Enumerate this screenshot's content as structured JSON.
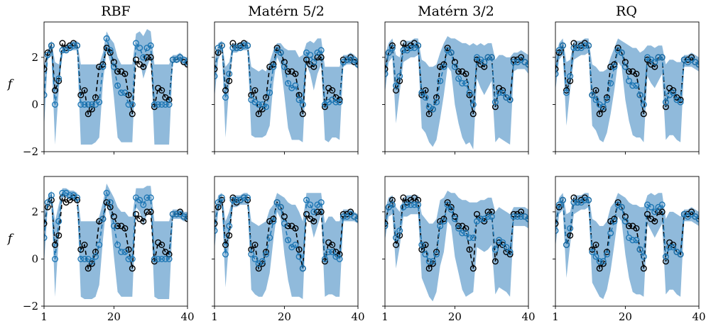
{
  "chart_data": {
    "type": "line",
    "layout": "2 rows x 4 columns, shared axes",
    "column_titles": [
      "RBF",
      "Matérn 5/2",
      "Matérn 3/2",
      "RQ"
    ],
    "ylabel": "f",
    "xlim": [
      1,
      40
    ],
    "ylim": [
      -2,
      3.5
    ],
    "x_ticks": [
      1,
      20,
      40
    ],
    "x_tick_labels": [
      "1",
      "20",
      "40"
    ],
    "y_ticks": [
      -2,
      0,
      2
    ],
    "y_tick_labels": [
      "−2",
      "0",
      "2"
    ],
    "colors": {
      "truth": "#000000",
      "prediction": "#1f77b4",
      "band": "#8ab6d9"
    },
    "x": [
      1,
      2,
      3,
      4,
      5,
      6,
      7,
      8,
      9,
      10,
      11,
      12,
      13,
      14,
      15,
      16,
      17,
      18,
      19,
      20,
      21,
      22,
      23,
      24,
      25,
      26,
      27,
      28,
      29,
      30,
      31,
      32,
      33,
      34,
      35,
      36,
      37,
      38,
      39,
      40
    ],
    "truth": [
      1.5,
      2.2,
      2.5,
      0.6,
      1.0,
      2.6,
      2.4,
      2.5,
      2.6,
      2.5,
      0.4,
      0.6,
      -0.4,
      -0.2,
      0.3,
      1.6,
      1.7,
      2.4,
      2.2,
      1.8,
      1.4,
      1.4,
      1.3,
      0.4,
      -0.4,
      1.9,
      1.7,
      1.6,
      2.0,
      2.0,
      -0.1,
      0.7,
      0.6,
      0.3,
      0.2,
      1.9,
      1.9,
      2.0,
      1.8,
      1.7
    ],
    "panels": [
      {
        "row": 1,
        "col": 1,
        "kernel": "RBF",
        "mean": [
          0.4,
          2.1,
          2.5,
          0.0,
          1.1,
          2.3,
          2.3,
          2.4,
          2.5,
          2.5,
          0.0,
          0.0,
          0.0,
          0.0,
          0.0,
          0.1,
          1.6,
          2.8,
          2.3,
          1.6,
          0.8,
          0.5,
          0.5,
          0.0,
          0.0,
          2.6,
          2.4,
          2.0,
          2.4,
          2.5,
          0.0,
          0.0,
          0.0,
          0.0,
          0.0,
          1.9,
          1.9,
          2.0,
          1.9,
          1.8
        ],
        "lower": [
          -1.0,
          1.9,
          2.2,
          -1.7,
          0.6,
          2.2,
          2.2,
          2.3,
          2.3,
          2.3,
          -1.7,
          -1.7,
          -1.7,
          -1.7,
          -1.6,
          -1.4,
          0.9,
          2.3,
          1.8,
          0.3,
          -1.4,
          -1.6,
          -1.6,
          -1.6,
          -1.6,
          2.1,
          1.9,
          1.1,
          1.6,
          2.0,
          -1.7,
          -1.7,
          -1.7,
          -1.7,
          -1.7,
          1.8,
          1.8,
          1.8,
          1.7,
          1.6
        ],
        "upper": [
          1.7,
          2.3,
          2.7,
          1.8,
          1.7,
          2.5,
          2.5,
          2.6,
          2.7,
          2.7,
          1.7,
          1.7,
          1.7,
          1.7,
          1.7,
          1.7,
          2.2,
          3.1,
          2.8,
          2.6,
          2.0,
          1.7,
          1.7,
          1.7,
          1.7,
          3.0,
          3.1,
          2.9,
          3.2,
          3.1,
          1.7,
          1.7,
          1.7,
          1.7,
          1.7,
          2.1,
          2.1,
          2.2,
          2.0,
          2.0
        ]
      },
      {
        "row": 1,
        "col": 2,
        "kernel": "Matérn 5/2",
        "mean": [
          1.2,
          2.4,
          2.5,
          0.3,
          1.3,
          2.4,
          2.4,
          2.4,
          2.5,
          2.5,
          0.2,
          0.1,
          0.0,
          0.0,
          -0.1,
          0.5,
          1.6,
          2.3,
          2.2,
          1.6,
          0.9,
          0.7,
          0.8,
          0.2,
          0.0,
          2.2,
          2.1,
          1.8,
          2.2,
          2.3,
          0.0,
          0.1,
          0.2,
          0.1,
          0.1,
          1.8,
          1.9,
          1.9,
          1.9,
          1.7
        ],
        "lower": [
          0.3,
          1.9,
          2.3,
          -1.4,
          0.8,
          2.2,
          2.2,
          2.3,
          2.3,
          2.3,
          -1.3,
          -1.4,
          -1.4,
          -1.4,
          -1.3,
          -0.9,
          0.9,
          2.0,
          1.7,
          0.4,
          -1.0,
          -1.5,
          -1.5,
          -1.5,
          -1.6,
          1.7,
          1.3,
          0.6,
          1.3,
          1.7,
          -1.5,
          -1.6,
          -1.4,
          -1.4,
          -1.5,
          1.6,
          1.7,
          1.7,
          1.7,
          1.5
        ],
        "upper": [
          1.8,
          2.6,
          2.7,
          1.6,
          1.8,
          2.6,
          2.6,
          2.6,
          2.7,
          2.7,
          1.6,
          1.5,
          1.4,
          1.5,
          1.4,
          1.8,
          2.3,
          2.6,
          2.6,
          2.4,
          2.3,
          2.3,
          2.3,
          2.0,
          2.1,
          2.6,
          2.7,
          2.6,
          2.8,
          2.8,
          1.6,
          1.6,
          1.6,
          1.6,
          1.6,
          2.1,
          2.1,
          2.2,
          2.1,
          1.9
        ]
      },
      {
        "row": 1,
        "col": 3,
        "kernel": "Matérn 3/2",
        "mean": [
          1.3,
          2.2,
          2.4,
          0.8,
          1.2,
          2.3,
          2.3,
          2.4,
          2.4,
          2.5,
          0.5,
          0.3,
          -0.1,
          -0.2,
          0.1,
          1.0,
          1.6,
          2.3,
          2.2,
          1.6,
          1.1,
          0.9,
          0.9,
          0.5,
          0.0,
          2.0,
          1.9,
          1.8,
          2.0,
          2.0,
          0.1,
          0.5,
          0.5,
          0.3,
          0.2,
          1.8,
          1.8,
          1.9,
          1.8,
          1.7
        ],
        "lower": [
          0.5,
          1.8,
          2.0,
          -0.8,
          0.5,
          1.8,
          1.9,
          2.0,
          2.0,
          2.1,
          -1.0,
          -1.2,
          -1.6,
          -1.8,
          -1.5,
          -0.6,
          0.4,
          1.6,
          1.4,
          0.0,
          -0.8,
          -1.4,
          -1.7,
          -1.6,
          -1.9,
          1.1,
          0.7,
          0.4,
          0.7,
          1.0,
          -1.6,
          -1.4,
          -1.5,
          -1.6,
          -1.7,
          1.4,
          1.5,
          1.5,
          1.5,
          1.3
        ],
        "upper": [
          2.1,
          2.6,
          2.8,
          2.1,
          2.0,
          2.7,
          2.7,
          2.7,
          2.8,
          2.8,
          1.9,
          1.8,
          1.6,
          1.6,
          1.7,
          2.2,
          2.6,
          2.9,
          2.8,
          2.8,
          2.7,
          2.6,
          2.6,
          2.5,
          2.6,
          2.5,
          2.6,
          2.5,
          2.6,
          2.6,
          1.9,
          2.1,
          2.1,
          2.0,
          2.0,
          2.2,
          2.2,
          2.3,
          2.2,
          2.1
        ]
      },
      {
        "row": 1,
        "col": 4,
        "kernel": "RQ",
        "mean": [
          1.3,
          2.3,
          2.5,
          0.5,
          1.2,
          2.4,
          2.4,
          2.4,
          2.5,
          2.5,
          0.4,
          0.2,
          0.0,
          -0.1,
          0.2,
          0.9,
          1.6,
          2.3,
          2.2,
          1.6,
          1.0,
          0.8,
          0.8,
          0.4,
          0.0,
          2.0,
          1.9,
          1.8,
          2.0,
          2.0,
          0.1,
          0.4,
          0.5,
          0.2,
          0.1,
          1.9,
          1.8,
          1.9,
          1.8,
          1.7
        ],
        "lower": [
          0.6,
          1.9,
          2.1,
          -0.9,
          0.6,
          1.9,
          2.0,
          2.1,
          2.1,
          2.2,
          -0.9,
          -1.1,
          -1.5,
          -1.6,
          -1.2,
          -0.4,
          0.6,
          1.8,
          1.6,
          0.2,
          -0.7,
          -1.3,
          -1.4,
          -1.4,
          -1.6,
          1.2,
          0.9,
          0.7,
          1.0,
          1.3,
          -1.5,
          -1.3,
          -1.3,
          -1.5,
          -1.6,
          1.6,
          1.6,
          1.6,
          1.5,
          1.4
        ],
        "upper": [
          2.0,
          2.6,
          2.8,
          1.8,
          1.9,
          2.7,
          2.7,
          2.7,
          2.8,
          2.8,
          1.7,
          1.6,
          1.4,
          1.4,
          1.5,
          2.0,
          2.4,
          2.8,
          2.7,
          2.6,
          2.5,
          2.4,
          2.4,
          2.2,
          2.3,
          2.5,
          2.5,
          2.4,
          2.5,
          2.5,
          1.7,
          1.9,
          1.9,
          1.8,
          1.8,
          2.1,
          2.1,
          2.2,
          2.1,
          2.0
        ]
      },
      {
        "row": 2,
        "col": 1,
        "kernel": "RBF",
        "mean": [
          0.9,
          2.4,
          2.7,
          0.0,
          1.6,
          2.8,
          2.8,
          2.7,
          2.7,
          2.6,
          0.0,
          0.0,
          0.0,
          -0.1,
          0.1,
          0.6,
          1.7,
          2.8,
          2.4,
          1.4,
          0.6,
          0.3,
          0.3,
          0.0,
          0.0,
          2.6,
          2.5,
          2.3,
          2.6,
          2.6,
          0.0,
          0.0,
          0.0,
          0.0,
          0.0,
          1.9,
          1.9,
          1.9,
          1.8,
          1.8
        ],
        "lower": [
          -0.2,
          2.2,
          2.5,
          -1.6,
          0.9,
          2.6,
          2.6,
          2.5,
          2.5,
          2.4,
          -1.6,
          -1.7,
          -1.7,
          -1.7,
          -1.6,
          -1.1,
          0.8,
          2.4,
          1.8,
          0.1,
          -1.4,
          -1.6,
          -1.6,
          -1.6,
          -1.6,
          2.2,
          2.0,
          1.4,
          1.9,
          2.2,
          -1.6,
          -1.7,
          -1.7,
          -1.7,
          -1.7,
          1.7,
          1.7,
          1.7,
          1.6,
          1.6
        ],
        "upper": [
          2.0,
          2.6,
          2.9,
          1.6,
          2.3,
          3.0,
          3.0,
          2.9,
          2.9,
          2.8,
          1.6,
          1.6,
          1.6,
          1.6,
          1.6,
          1.8,
          2.4,
          3.2,
          2.9,
          2.6,
          2.2,
          2.0,
          2.0,
          1.8,
          1.8,
          3.0,
          3.0,
          3.0,
          3.1,
          3.1,
          1.6,
          1.6,
          1.6,
          1.6,
          1.6,
          2.1,
          2.1,
          2.1,
          2.0,
          2.0
        ]
      },
      {
        "row": 2,
        "col": 2,
        "kernel": "Matérn 5/2",
        "mean": [
          1.2,
          2.4,
          2.6,
          0.2,
          1.4,
          2.5,
          2.5,
          2.5,
          2.6,
          2.6,
          0.2,
          0.0,
          -0.2,
          -0.1,
          0.2,
          0.9,
          1.6,
          2.4,
          2.2,
          1.5,
          0.8,
          0.5,
          0.6,
          0.1,
          -0.4,
          2.5,
          2.3,
          2.0,
          2.3,
          2.4,
          0.0,
          0.3,
          0.3,
          0.1,
          0.0,
          1.8,
          1.8,
          1.9,
          1.8,
          1.7
        ],
        "lower": [
          0.4,
          2.0,
          2.3,
          -1.2,
          0.8,
          2.2,
          2.2,
          2.3,
          2.3,
          2.3,
          -1.3,
          -1.5,
          -1.6,
          -1.6,
          -1.3,
          -0.6,
          0.8,
          2.0,
          1.7,
          0.2,
          -0.9,
          -1.6,
          -1.6,
          -1.6,
          -1.7,
          2.0,
          1.6,
          0.9,
          1.4,
          1.9,
          -1.6,
          -1.5,
          -1.5,
          -1.6,
          -1.6,
          1.6,
          1.6,
          1.6,
          1.6,
          1.5
        ],
        "upper": [
          1.9,
          2.7,
          2.8,
          1.6,
          2.0,
          2.7,
          2.7,
          2.7,
          2.8,
          2.8,
          1.6,
          1.5,
          1.4,
          1.5,
          1.6,
          2.1,
          2.3,
          2.8,
          2.7,
          2.6,
          2.4,
          2.3,
          2.3,
          2.0,
          1.6,
          2.8,
          2.8,
          2.8,
          2.8,
          2.8,
          1.5,
          1.8,
          1.8,
          1.6,
          1.6,
          2.1,
          2.1,
          2.1,
          2.0,
          1.9
        ]
      },
      {
        "row": 2,
        "col": 3,
        "kernel": "Matérn 3/2",
        "mean": [
          1.4,
          2.2,
          2.3,
          0.9,
          1.2,
          2.2,
          2.3,
          2.3,
          2.3,
          2.3,
          0.6,
          0.2,
          -0.1,
          -0.1,
          0.2,
          1.4,
          1.6,
          2.3,
          2.1,
          1.7,
          1.3,
          1.1,
          1.1,
          0.9,
          0.9,
          1.6,
          1.7,
          1.7,
          1.8,
          1.8,
          0.4,
          0.8,
          0.7,
          0.5,
          0.3,
          1.8,
          1.8,
          1.8,
          1.8,
          1.7
        ],
        "lower": [
          0.8,
          1.8,
          1.9,
          -0.4,
          0.5,
          1.8,
          1.8,
          1.9,
          1.9,
          1.9,
          -0.8,
          -1.2,
          -1.6,
          -1.8,
          -1.4,
          -0.3,
          0.3,
          1.6,
          1.4,
          0.1,
          -0.6,
          -1.3,
          -1.6,
          -1.5,
          -1.4,
          0.5,
          0.4,
          0.3,
          0.4,
          0.6,
          -1.5,
          -1.2,
          -1.3,
          -1.4,
          -1.6,
          1.4,
          1.4,
          1.4,
          1.4,
          1.3
        ],
        "upper": [
          2.1,
          2.6,
          2.7,
          2.2,
          2.0,
          2.6,
          2.7,
          2.7,
          2.7,
          2.7,
          1.9,
          1.7,
          1.5,
          1.5,
          1.7,
          2.5,
          2.6,
          2.9,
          2.8,
          2.8,
          2.6,
          2.5,
          2.5,
          2.4,
          2.4,
          2.4,
          2.5,
          2.5,
          2.6,
          2.6,
          2.0,
          2.2,
          2.1,
          2.0,
          1.9,
          2.2,
          2.2,
          2.2,
          2.2,
          2.1
        ]
      },
      {
        "row": 2,
        "col": 4,
        "kernel": "RQ",
        "mean": [
          1.2,
          2.3,
          2.5,
          0.6,
          1.3,
          2.4,
          2.4,
          2.4,
          2.5,
          2.5,
          0.3,
          0.1,
          -0.1,
          -0.1,
          0.2,
          1.1,
          1.6,
          2.3,
          2.2,
          1.6,
          0.9,
          0.8,
          0.8,
          0.4,
          0.1,
          2.3,
          2.2,
          2.0,
          2.2,
          2.3,
          0.1,
          0.5,
          0.5,
          0.3,
          0.2,
          1.9,
          1.8,
          1.9,
          1.8,
          1.7
        ],
        "lower": [
          0.5,
          1.9,
          2.1,
          -0.8,
          0.6,
          1.9,
          2.0,
          2.1,
          2.1,
          2.2,
          -1.0,
          -1.3,
          -1.6,
          -1.7,
          -1.3,
          -0.5,
          0.6,
          1.8,
          1.6,
          0.2,
          -0.8,
          -1.4,
          -1.5,
          -1.5,
          -1.6,
          1.5,
          1.2,
          0.9,
          1.2,
          1.5,
          -1.5,
          -1.3,
          -1.3,
          -1.5,
          -1.6,
          1.6,
          1.6,
          1.6,
          1.5,
          1.4
        ],
        "upper": [
          1.9,
          2.6,
          2.8,
          1.9,
          2.0,
          2.7,
          2.7,
          2.7,
          2.8,
          2.8,
          1.7,
          1.6,
          1.4,
          1.4,
          1.6,
          2.2,
          2.4,
          2.8,
          2.7,
          2.6,
          2.4,
          2.3,
          2.3,
          2.2,
          2.2,
          2.7,
          2.8,
          2.7,
          2.8,
          2.8,
          1.7,
          2.0,
          2.0,
          1.9,
          1.8,
          2.1,
          2.1,
          2.2,
          2.1,
          2.0
        ]
      }
    ]
  }
}
